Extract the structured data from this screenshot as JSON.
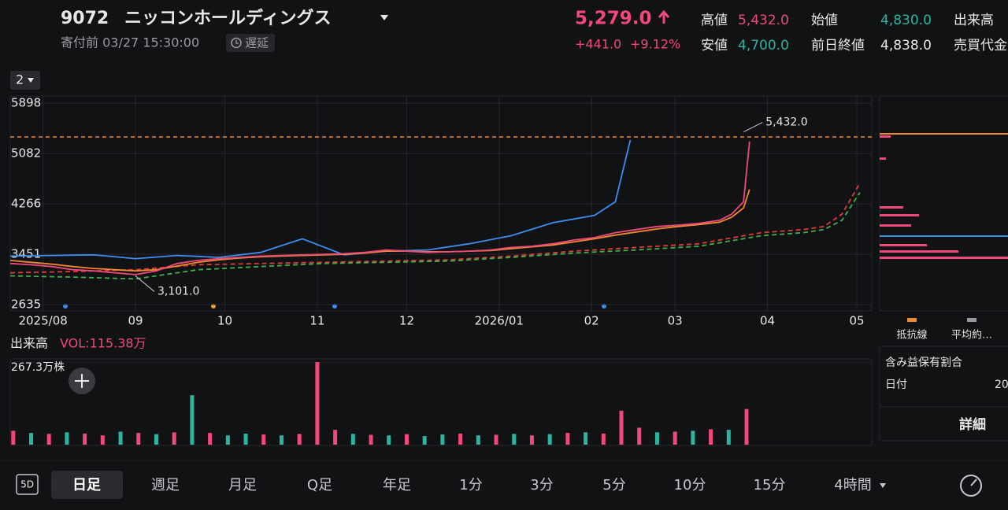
{
  "header": {
    "code": "9072",
    "name": "ニッコンホールディングス",
    "status_time": "寄付前 03/27 15:30:00",
    "delay": "遅延",
    "price": "5,279.0",
    "change": "+441.0",
    "change_pct": "+9.12%",
    "price_color": "#f0487a",
    "stats": [
      {
        "label": "高値",
        "value": "5,432.0",
        "color": "#f0487a"
      },
      {
        "label": "始値",
        "value": "4,830.0",
        "color": "#2bb5a0"
      },
      {
        "label": "出来高"
      },
      {
        "label": "安値",
        "value": "4,700.0",
        "color": "#2bb5a0"
      },
      {
        "label": "前日終値",
        "value": "4,838.0",
        "color": "#e8e8ea"
      },
      {
        "label": "売買代金"
      }
    ]
  },
  "selector": "2",
  "chart_data": [
    {
      "type": "line",
      "grid": true,
      "xlim": [
        -11,
        278
      ],
      "xticks": [
        {
          "value": 0,
          "label": "2025/08"
        },
        {
          "value": 31,
          "label": "09"
        },
        {
          "value": 61,
          "label": "10"
        },
        {
          "value": 92,
          "label": "11"
        },
        {
          "value": 122,
          "label": "12"
        },
        {
          "value": 153,
          "label": "2026/01"
        },
        {
          "value": 184,
          "label": "02"
        },
        {
          "value": 212,
          "label": "03"
        },
        {
          "value": 243,
          "label": "04"
        },
        {
          "value": 273,
          "label": "05"
        }
      ],
      "ylim": [
        2635,
        5898
      ],
      "yticks": [
        2635,
        3451,
        4266,
        5082,
        5898
      ],
      "price_line": 5350,
      "price_line_color": "#f08a2e",
      "annotations": [
        {
          "text": "5,432.0",
          "x": 235,
          "y": 5432
        },
        {
          "text": "3,101.0",
          "x": 31,
          "y": 3101
        }
      ],
      "series": [
        {
          "color": "#3d8ef0",
          "dashed": false,
          "x": [
            -11,
            3,
            17,
            31,
            45,
            59,
            73,
            87,
            101,
            115,
            129,
            143,
            157,
            171,
            185,
            192,
            197
          ],
          "values": [
            3420,
            3430,
            3440,
            3380,
            3430,
            3400,
            3480,
            3700,
            3440,
            3500,
            3520,
            3620,
            3750,
            3960,
            4080,
            4300,
            5300
          ]
        },
        {
          "color": "#e03a3a",
          "dashed": true,
          "x": [
            -11,
            10,
            31,
            52,
            73,
            94,
            115,
            136,
            157,
            178,
            199,
            220,
            241,
            255,
            262,
            268,
            274
          ],
          "values": [
            3150,
            3170,
            3200,
            3280,
            3300,
            3320,
            3340,
            3360,
            3420,
            3500,
            3560,
            3620,
            3800,
            3850,
            3900,
            4100,
            4600
          ]
        },
        {
          "color": "#3fae49",
          "dashed": true,
          "x": [
            -11,
            10,
            31,
            52,
            73,
            94,
            115,
            136,
            157,
            178,
            199,
            220,
            241,
            255,
            262,
            268,
            274
          ],
          "values": [
            3100,
            3080,
            3050,
            3200,
            3250,
            3300,
            3320,
            3340,
            3400,
            3470,
            3520,
            3580,
            3750,
            3800,
            3850,
            4000,
            4450
          ]
        },
        {
          "color": "#f08a2e",
          "dashed": false,
          "x": [
            -11,
            -4,
            3,
            10,
            17,
            24,
            31,
            38,
            45,
            52,
            59,
            66,
            73,
            80,
            87,
            94,
            101,
            108,
            115,
            122,
            129,
            136,
            143,
            150,
            157,
            164,
            171,
            178,
            185,
            192,
            199,
            206,
            213,
            220,
            227,
            231,
            235,
            237
          ],
          "values": [
            3350,
            3320,
            3290,
            3250,
            3220,
            3200,
            3180,
            3200,
            3260,
            3320,
            3360,
            3390,
            3410,
            3420,
            3430,
            3440,
            3450,
            3470,
            3500,
            3500,
            3490,
            3490,
            3500,
            3510,
            3540,
            3570,
            3600,
            3650,
            3700,
            3760,
            3810,
            3860,
            3900,
            3930,
            3970,
            4050,
            4200,
            4500
          ]
        },
        {
          "color": "#f0487a",
          "dashed": false,
          "x": [
            -11,
            -4,
            3,
            10,
            17,
            24,
            31,
            38,
            45,
            52,
            59,
            66,
            73,
            80,
            87,
            94,
            101,
            108,
            115,
            122,
            129,
            136,
            143,
            150,
            157,
            164,
            171,
            178,
            185,
            192,
            199,
            206,
            213,
            220,
            227,
            231,
            235,
            237
          ],
          "values": [
            3300,
            3280,
            3250,
            3200,
            3180,
            3150,
            3120,
            3180,
            3300,
            3350,
            3380,
            3400,
            3420,
            3430,
            3440,
            3450,
            3460,
            3480,
            3520,
            3500,
            3480,
            3490,
            3500,
            3520,
            3560,
            3580,
            3620,
            3680,
            3720,
            3800,
            3850,
            3900,
            3920,
            3950,
            4000,
            4100,
            4300,
            5279
          ]
        }
      ]
    },
    {
      "type": "bar",
      "title": "出来高",
      "subtitle": "VOL:115.38万",
      "xlim": [
        -11,
        278
      ],
      "ylim": [
        0,
        267.3
      ],
      "yticks": [
        {
          "value": 267.3,
          "label": "267.3万株"
        }
      ],
      "x": [
        -10,
        -4,
        2,
        8,
        14,
        20,
        26,
        32,
        38,
        44,
        50,
        56,
        62,
        68,
        74,
        80,
        86,
        92,
        98,
        104,
        110,
        116,
        122,
        128,
        134,
        140,
        146,
        152,
        158,
        164,
        170,
        176,
        182,
        188,
        194,
        200,
        206,
        212,
        218,
        224,
        230,
        236
      ],
      "values": [
        45,
        38,
        35,
        40,
        36,
        30,
        42,
        38,
        34,
        40,
        160,
        38,
        30,
        36,
        33,
        30,
        35,
        267.3,
        48,
        35,
        32,
        30,
        34,
        28,
        33,
        36,
        30,
        32,
        35,
        30,
        34,
        38,
        40,
        36,
        110,
        55,
        40,
        42,
        45,
        50,
        48,
        115.38
      ],
      "colors": [
        "#f0487a",
        "#2bb5a0",
        "#f0487a",
        "#2bb5a0",
        "#f0487a",
        "#f0487a",
        "#2bb5a0",
        "#f0487a",
        "#2bb5a0",
        "#f0487a",
        "#2bb5a0",
        "#f0487a",
        "#2bb5a0",
        "#2bb5a0",
        "#f0487a",
        "#2bb5a0",
        "#f0487a",
        "#f0487a",
        "#f0487a",
        "#2bb5a0",
        "#f0487a",
        "#2bb5a0",
        "#f0487a",
        "#2bb5a0",
        "#2bb5a0",
        "#f0487a",
        "#2bb5a0",
        "#f0487a",
        "#2bb5a0",
        "#f0487a",
        "#2bb5a0",
        "#f0487a",
        "#2bb5a0",
        "#f0487a",
        "#f0487a",
        "#f0487a",
        "#2bb5a0",
        "#f0487a",
        "#2bb5a0",
        "#f0487a",
        "#2bb5a0",
        "#f0487a"
      ]
    }
  ],
  "side_panel": {
    "legend": [
      {
        "label": "抵抗線",
        "color": "#f08a2e"
      },
      {
        "label": "平均約…",
        "color": "#9a9ba0"
      }
    ],
    "title": "含み益保有割合",
    "date_label": "日付",
    "date_value": "20",
    "button": "詳細"
  },
  "toolbar": {
    "badge": "5D",
    "tabs": [
      "日足",
      "週足",
      "月足",
      "Q足",
      "年足",
      "1分",
      "3分",
      "5分",
      "10分",
      "15分",
      "4時間"
    ],
    "active": 0
  }
}
